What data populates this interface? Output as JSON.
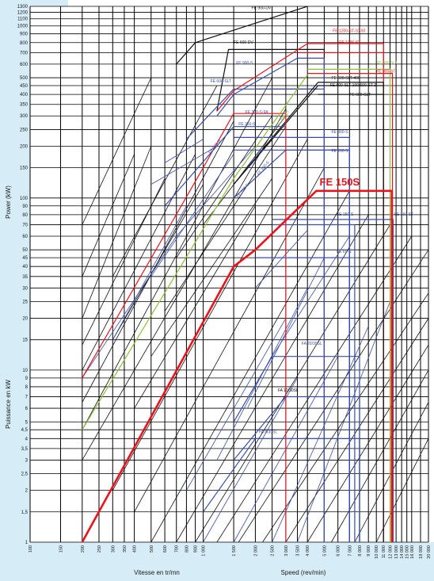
{
  "chart_data": {
    "type": "line",
    "xscale": "log",
    "yscale": "log",
    "xlim": [
      100,
      20000
    ],
    "ylim": [
      1,
      1300
    ],
    "grid": true,
    "xlabel_fr": "Vitesse en tr/mn",
    "xlabel_en": "Speed (rev/min)",
    "ylabel_en": "Power  (kW)",
    "ylabel_fr": "Puissance en kW",
    "x_ticks": [
      100,
      150,
      200,
      250,
      300,
      350,
      400,
      500,
      600,
      700,
      800,
      900,
      1000,
      1500,
      2000,
      2500,
      3000,
      3500,
      4000,
      5000,
      6000,
      7000,
      8000,
      9000,
      10000,
      11000,
      12000,
      13000,
      14000,
      15000,
      16000,
      18000,
      20000
    ],
    "x_tick_labels": [
      "100",
      "150",
      "200",
      "250",
      "300",
      "350",
      "400",
      "500",
      "600",
      "700",
      "800",
      "900",
      "1 000",
      "1 500",
      "2 000",
      "2 500",
      "3 000",
      "3 500",
      "4 000",
      "5 000",
      "6 000",
      "7 000",
      "8 000",
      "9 000",
      "10 000",
      "11 000",
      "12 000",
      "13 000",
      "14 000",
      "15 000",
      "16 000",
      "18 000",
      "20 000"
    ],
    "y_ticks": [
      1,
      1.5,
      2,
      2.5,
      3,
      3.5,
      4,
      4.5,
      5,
      6,
      7,
      8,
      9,
      10,
      15,
      20,
      25,
      30,
      35,
      40,
      45,
      50,
      60,
      70,
      80,
      90,
      100,
      150,
      200,
      250,
      300,
      350,
      400,
      450,
      500,
      600,
      700,
      800,
      900,
      1000,
      1100,
      1200,
      1300
    ],
    "y_tick_labels": [
      "1",
      "1,5",
      "2",
      "2,5",
      "3",
      "3,5",
      "4",
      "4,5",
      "5",
      "6",
      "7",
      "8",
      "9",
      "10",
      "15",
      "20",
      "25",
      "30",
      "35",
      "40",
      "45",
      "50",
      "60",
      "70",
      "80",
      "90",
      "100",
      "150",
      "200",
      "250",
      "300",
      "350",
      "400",
      "450",
      "500",
      "600",
      "700",
      "800",
      "900",
      "1000",
      "1100",
      "1200",
      "1300"
    ],
    "highlight": {
      "name": "FE 150S",
      "color": "#e8141b",
      "points": [
        [
          200,
          1
        ],
        [
          1500,
          40
        ],
        [
          2000,
          50
        ],
        [
          4500,
          110
        ],
        [
          12300,
          110
        ],
        [
          12300,
          1
        ]
      ]
    },
    "series": [
      {
        "name": "FE 900-DV",
        "color": "#111111",
        "points": [
          [
            700,
            600
          ],
          [
            900,
            800
          ],
          [
            4000,
            1300
          ]
        ]
      },
      {
        "name": "FE 600-DV",
        "color": "#111111",
        "points": [
          [
            1200,
            320
          ],
          [
            1400,
            730
          ],
          [
            5000,
            730
          ],
          [
            5000,
            1
          ]
        ]
      },
      {
        "name": "FE 1200-ST-10-50",
        "color": "#e8141b",
        "points": [
          [
            1200,
            320
          ],
          [
            1500,
            420
          ],
          [
            4000,
            790
          ],
          [
            11000,
            790
          ],
          [
            11000,
            1
          ]
        ]
      },
      {
        "name": "FE 1200-ST",
        "color": "#e8141b",
        "points": [
          [
            3500,
            700
          ],
          [
            11000,
            700
          ]
        ]
      },
      {
        "name": "FE 900-S",
        "color": "#3a4ea6",
        "points": [
          [
            1200,
            300
          ],
          [
            1500,
            400
          ],
          [
            3500,
            650
          ],
          [
            5000,
            650
          ],
          [
            5000,
            1
          ]
        ]
      },
      {
        "name": "FE 600-S",
        "color": "#3a4ea6",
        "points": [
          [
            800,
            220
          ],
          [
            1500,
            430
          ],
          [
            5000,
            430
          ]
        ]
      },
      {
        "name": "FE 600-SLT",
        "color": "#3a4ea6",
        "points": [
          [
            2000,
            430
          ],
          [
            4600,
            430
          ]
        ]
      },
      {
        "name": "FE 900-SLT",
        "color": "#8bbf3a",
        "points": [
          [
            4000,
            560
          ],
          [
            12000,
            560
          ],
          [
            12000,
            1
          ]
        ]
      },
      {
        "name": "FE 900-ST",
        "color": "#e8141b",
        "points": [
          [
            4000,
            530
          ],
          [
            12400,
            530
          ],
          [
            12400,
            1
          ]
        ]
      },
      {
        "name": "FE 600-SLT-400",
        "color": "#111111",
        "points": [
          [
            1500,
            120
          ],
          [
            4600,
            470
          ],
          [
            11000,
            470
          ],
          [
            11000,
            1
          ]
        ]
      },
      {
        "name": "FE 600-SLT-100/600-ST-2",
        "color": "#111111",
        "points": [
          [
            1500,
            120
          ],
          [
            4600,
            450
          ],
          [
            11000,
            450
          ]
        ]
      },
      {
        "name": "FE 600-SLT",
        "color": "#111111",
        "points": [
          [
            4600,
            400
          ],
          [
            11000,
            400
          ]
        ]
      },
      {
        "name": "FE 300-S-9A",
        "color": "#e8141b",
        "points": [
          [
            200,
            9
          ],
          [
            1000,
            150
          ],
          [
            1500,
            310
          ],
          [
            3000,
            310
          ],
          [
            3000,
            1
          ]
        ]
      },
      {
        "name": "FE 350-S",
        "color": "#3a4ea6",
        "points": [
          [
            600,
            90
          ],
          [
            1500,
            260
          ],
          [
            3000,
            260
          ]
        ]
      },
      {
        "name": "FE 300-S",
        "color": "#3a4ea6",
        "points": [
          [
            1500,
            225
          ],
          [
            7000,
            225
          ],
          [
            7000,
            1
          ]
        ]
      },
      {
        "name": "FE 260-S",
        "color": "#3a4ea6",
        "points": [
          [
            1500,
            190
          ],
          [
            7000,
            190
          ],
          [
            7000,
            1
          ]
        ]
      },
      {
        "name": "FE 260-S-400",
        "color": "#3a4ea6",
        "points": [
          [
            1500,
            100
          ],
          [
            3000,
            190
          ],
          [
            7000,
            190
          ]
        ]
      },
      {
        "name": "FE 150-ST",
        "color": "#3a4ea6",
        "points": [
          [
            2500,
            75
          ],
          [
            12500,
            75
          ],
          [
            12500,
            1
          ]
        ]
      },
      {
        "name": "FE 150-S",
        "color": "#3a4ea6",
        "points": [
          [
            2500,
            70
          ],
          [
            7500,
            70
          ],
          [
            7500,
            1
          ]
        ]
      },
      {
        "name": "FE 65-S",
        "color": "#3a4ea6",
        "points": [
          [
            2000,
            45
          ],
          [
            7000,
            45
          ],
          [
            7000,
            1
          ]
        ]
      },
      {
        "name": "FA 20/30SL",
        "color": "#3a4ea6",
        "points": [
          [
            1500,
            5
          ],
          [
            2500,
            12
          ],
          [
            8000,
            12
          ],
          [
            8000,
            1
          ]
        ]
      },
      {
        "name": "FA 10/30SL",
        "color": "#3a4ea6",
        "points": [
          [
            1500,
            3
          ],
          [
            3000,
            7
          ],
          [
            8000,
            7
          ],
          [
            8000,
            1
          ]
        ]
      },
      {
        "name": "FA 8/30SL",
        "color": "#3a4ea6",
        "points": [
          [
            1000,
            1.5
          ],
          [
            2000,
            4
          ],
          [
            8000,
            4
          ],
          [
            8000,
            1
          ]
        ]
      },
      {
        "name": "FE 300-ST",
        "color": "#8bbf3a",
        "points": [
          [
            200,
            4.5
          ],
          [
            1500,
            130
          ],
          [
            4000,
            520
          ]
        ]
      }
    ],
    "labels": [
      {
        "text": "FE 900-DV",
        "x": 1900,
        "y": 1250,
        "color": "#111111"
      },
      {
        "text": "FE 600-DV",
        "x": 1500,
        "y": 790,
        "color": "#111111"
      },
      {
        "text": "FE 1200-ST-10-50",
        "x": 5600,
        "y": 920,
        "color": "#e8141b"
      },
      {
        "text": "FE 1200-ST",
        "x": 6100,
        "y": 790,
        "color": "#e8141b"
      },
      {
        "text": "FE 900-SLT",
        "x": 10000,
        "y": 600,
        "color": "#8bbf3a"
      },
      {
        "text": "FE 900-ST",
        "x": 10000,
        "y": 535,
        "color": "#e8141b"
      },
      {
        "text": "FE 900-S",
        "x": 1550,
        "y": 600,
        "color": "#3a4ea6"
      },
      {
        "text": "FE 600-SLT",
        "x": 1100,
        "y": 470,
        "color": "#3a4ea6"
      },
      {
        "text": "FE 600-SLT-400",
        "x": 5500,
        "y": 490,
        "color": "#111111"
      },
      {
        "text": "FE 600-SLT-100/600-ST-2",
        "x": 5400,
        "y": 445,
        "color": "#111111"
      },
      {
        "text": "FE 600-SLT",
        "x": 7000,
        "y": 393,
        "color": "#111111"
      },
      {
        "text": "FE 300-S-9A",
        "x": 1750,
        "y": 310,
        "color": "#3a4ea6"
      },
      {
        "text": "FE 350-S",
        "x": 1600,
        "y": 265,
        "color": "#3a4ea6"
      },
      {
        "text": "FE 300-S",
        "x": 5500,
        "y": 238,
        "color": "#3a4ea6"
      },
      {
        "text": "FE 260-S",
        "x": 5500,
        "y": 185,
        "color": "#3a4ea6"
      },
      {
        "text": "FE 150-S",
        "x": 5900,
        "y": 79,
        "color": "#3a4ea6"
      },
      {
        "text": "FE 150-ST",
        "x": 12700,
        "y": 79,
        "color": "#3a4ea6"
      },
      {
        "text": "FE 65-S",
        "x": 5900,
        "y": 48,
        "color": "#3a4ea6"
      },
      {
        "text": "FA 20/30SL",
        "x": 3700,
        "y": 14,
        "color": "#3a4ea6"
      },
      {
        "text": "FA 10/30SL",
        "x": 2700,
        "y": 7.5,
        "color": "#111111"
      },
      {
        "text": "FA 8/30SL",
        "x": 2100,
        "y": 4.3,
        "color": "#3a4ea6"
      }
    ],
    "rotated_labels": [
      {
        "text": "FE 600-S",
        "x": 1100,
        "y": 180,
        "color": "#3a4ea6"
      },
      {
        "text": "FE 300-ST",
        "x": 2700,
        "y": 260,
        "color": "#8bbf3a"
      },
      {
        "text": "FE 260-S-400",
        "x": 1800,
        "y": 145,
        "color": "#3a4ea6"
      },
      {
        "text": "FE 280-S",
        "x": 2100,
        "y": 135,
        "color": "#3a4ea6"
      },
      {
        "text": "FE 260-S",
        "x": 1600,
        "y": 100,
        "color": "#3a4ea6"
      }
    ],
    "iso_lines": {
      "color": "#111111",
      "description": "diagonal iso-torque reference lines",
      "lines": [
        [
          [
            200,
            4.5
          ],
          [
            2500,
            500
          ]
        ],
        [
          [
            200,
            6.5
          ],
          [
            1500,
            280
          ]
        ],
        [
          [
            200,
            10
          ],
          [
            900,
            180
          ]
        ],
        [
          [
            200,
            14
          ],
          [
            600,
            130
          ]
        ],
        [
          [
            200,
            20
          ],
          [
            500,
            200
          ]
        ],
        [
          [
            200,
            35
          ],
          [
            400,
            180
          ]
        ],
        [
          [
            200,
            70
          ],
          [
            500,
            500
          ]
        ],
        [
          [
            300,
            35
          ],
          [
            1200,
            450
          ]
        ],
        [
          [
            200,
            3
          ],
          [
            3000,
            330
          ]
        ],
        [
          [
            300,
            2
          ],
          [
            4000,
            220
          ]
        ],
        [
          [
            400,
            1.5
          ],
          [
            5000,
            150
          ]
        ],
        [
          [
            500,
            1
          ],
          [
            7000,
            110
          ]
        ],
        [
          [
            700,
            1
          ],
          [
            9000,
            80
          ]
        ],
        [
          [
            900,
            1
          ],
          [
            12000,
            70
          ]
        ],
        [
          [
            1200,
            1
          ],
          [
            16000,
            60
          ]
        ],
        [
          [
            1600,
            1
          ],
          [
            20000,
            50
          ]
        ],
        [
          [
            2200,
            1
          ],
          [
            20000,
            28
          ]
        ],
        [
          [
            3000,
            1
          ],
          [
            20000,
            20
          ]
        ],
        [
          [
            4000,
            1
          ],
          [
            20000,
            14
          ]
        ],
        [
          [
            5500,
            1
          ],
          [
            20000,
            10
          ]
        ],
        [
          [
            7500,
            1
          ],
          [
            20000,
            6.5
          ]
        ],
        [
          [
            10000,
            1
          ],
          [
            20000,
            4
          ]
        ],
        [
          [
            400,
            6
          ],
          [
            2000,
            90
          ]
        ],
        [
          [
            500,
            12
          ],
          [
            2500,
            130
          ]
        ],
        [
          [
            600,
            22
          ],
          [
            3000,
            260
          ]
        ],
        [
          [
            700,
            45
          ],
          [
            2500,
            300
          ]
        ],
        [
          [
            1000,
            70
          ],
          [
            3000,
            300
          ]
        ],
        [
          [
            300,
            15
          ],
          [
            1000,
            120
          ]
        ]
      ]
    },
    "blue_guides": {
      "color": "#3a4ea6",
      "lines": [
        [
          [
            200,
            9
          ],
          [
            700,
            60
          ]
        ],
        [
          [
            300,
            15
          ],
          [
            800,
            90
          ]
        ],
        [
          [
            500,
            35
          ],
          [
            1500,
            180
          ]
        ],
        [
          [
            700,
            60
          ],
          [
            2000,
            200
          ]
        ],
        [
          [
            800,
            2
          ],
          [
            3000,
            20
          ]
        ],
        [
          [
            1200,
            3
          ],
          [
            4000,
            30
          ]
        ],
        [
          [
            1800,
            6
          ],
          [
            5000,
            45
          ]
        ],
        [
          [
            2500,
            12
          ],
          [
            7000,
            60
          ]
        ],
        [
          [
            1000,
            1
          ],
          [
            3500,
            9
          ]
        ],
        [
          [
            1500,
            1
          ],
          [
            6000,
            12
          ]
        ],
        [
          [
            2500,
            1
          ],
          [
            9000,
            18
          ]
        ],
        [
          [
            3500,
            1
          ],
          [
            12000,
            25
          ]
        ],
        [
          [
            2000,
            30
          ],
          [
            4000,
            65
          ]
        ],
        [
          [
            500,
            120
          ],
          [
            1200,
            200
          ]
        ],
        [
          [
            600,
            160
          ],
          [
            1000,
            220
          ]
        ]
      ]
    }
  }
}
